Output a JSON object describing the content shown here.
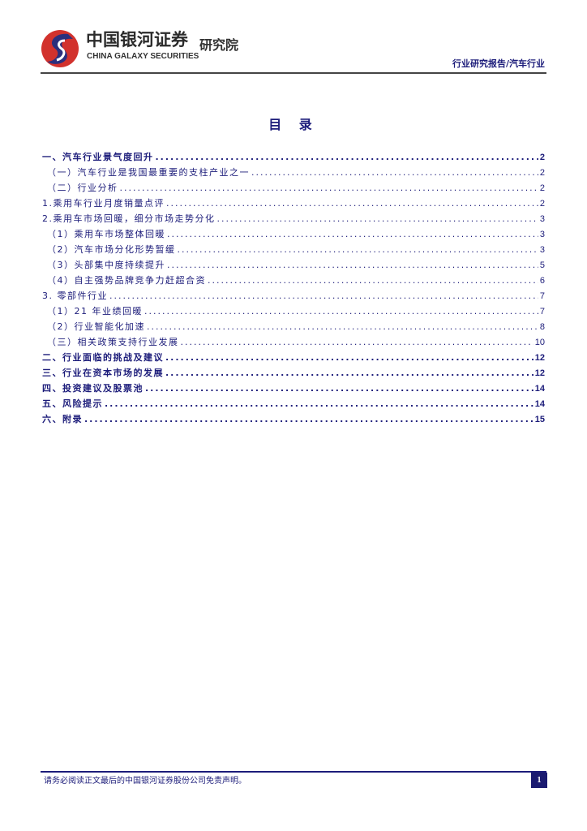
{
  "header": {
    "logo_cn": "中国银河证券",
    "logo_en": "CHINA GALAXY SECURITIES",
    "institute": "研究院",
    "category": "行业研究报告/汽车行业"
  },
  "title": "目 录",
  "toc": [
    {
      "label": "一、汽车行业景气度回升",
      "page": "2",
      "level": "bold"
    },
    {
      "label": "（一）汽车行业是我国最重要的支柱产业之一",
      "page": "2",
      "level": "sub"
    },
    {
      "label": "（二）行业分析",
      "page": "2",
      "level": "sub"
    },
    {
      "label": "1.乘用车行业月度销量点评",
      "page": "2",
      "level": "num"
    },
    {
      "label": "2.乘用车市场回暖，细分市场走势分化",
      "page": "3",
      "level": "num"
    },
    {
      "label": "（1）乘用车市场整体回暖",
      "page": "3",
      "level": "sub"
    },
    {
      "label": "（2）汽车市场分化形势暂缓",
      "page": "3",
      "level": "sub"
    },
    {
      "label": "（3）头部集中度持续提升",
      "page": "5",
      "level": "sub"
    },
    {
      "label": "（4）自主强势品牌竞争力赶超合资",
      "page": "6",
      "level": "sub"
    },
    {
      "label": "3.  零部件行业",
      "page": "7",
      "level": "num"
    },
    {
      "label": "（1）21 年业绩回暖",
      "page": "7",
      "level": "sub"
    },
    {
      "label": "（2）行业智能化加速",
      "page": "8",
      "level": "sub"
    },
    {
      "label": "（三）相关政策支持行业发展",
      "page": "10",
      "level": "sub"
    },
    {
      "label": "二、行业面临的挑战及建议",
      "page": "12",
      "level": "bold"
    },
    {
      "label": "三、行业在资本市场的发展",
      "page": "12",
      "level": "bold"
    },
    {
      "label": "四、投资建议及股票池",
      "page": "14",
      "level": "bold"
    },
    {
      "label": "五、风险提示",
      "page": "14",
      "level": "bold"
    },
    {
      "label": "六、附录",
      "page": "15",
      "level": "bold"
    }
  ],
  "footer": {
    "disclaimer": "请务必阅读正文最后的中国银河证券股份公司免责声明。",
    "page_number": "1"
  },
  "colors": {
    "text": "#1c1c7a",
    "logo_red": "#d2322d",
    "logo_navy": "#2b2f7d"
  }
}
